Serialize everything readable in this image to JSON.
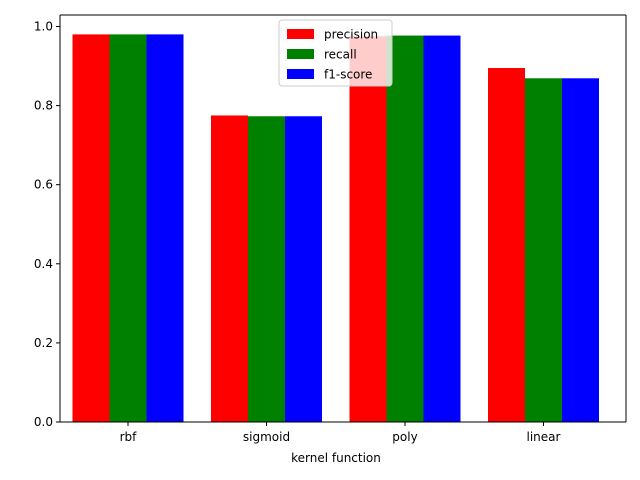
{
  "chart_data": {
    "type": "bar",
    "title": "",
    "xlabel": "kernel function",
    "ylabel": "",
    "categories": [
      "rbf",
      "sigmoid",
      "poly",
      "linear"
    ],
    "series": [
      {
        "name": "precision",
        "color": "#ff0000",
        "values": [
          0.98,
          0.775,
          0.975,
          0.895
        ]
      },
      {
        "name": "recall",
        "color": "#008000",
        "values": [
          0.98,
          0.773,
          0.977,
          0.869
        ]
      },
      {
        "name": "f1-score",
        "color": "#0000ff",
        "values": [
          0.98,
          0.773,
          0.977,
          0.869
        ]
      }
    ],
    "ylim": [
      0,
      1.029
    ],
    "yticks": [
      0.0,
      0.2,
      0.4,
      0.6,
      0.8,
      1.0
    ],
    "ytick_labels": [
      "0.0",
      "0.2",
      "0.4",
      "0.6",
      "0.8",
      "1.0"
    ],
    "grid": false,
    "legend_position": "top-center"
  }
}
